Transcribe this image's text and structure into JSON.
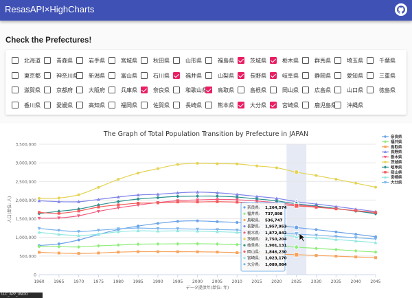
{
  "app": {
    "title": "ResasAPI×HighCharts",
    "github_icon": "github-icon"
  },
  "section": {
    "title": "Check the Prefectures!"
  },
  "colors": {
    "appbar": "#3f51b5",
    "checkbox_checked": "#e91e63"
  },
  "prefecture_rows": [
    [
      {
        "name": "北海道",
        "checked": false
      },
      {
        "name": "青森県",
        "checked": false
      },
      {
        "name": "岩手県",
        "checked": false
      },
      {
        "name": "宮城県",
        "checked": false
      },
      {
        "name": "秋田県",
        "checked": false
      },
      {
        "name": "山形県",
        "checked": false
      },
      {
        "name": "福島県",
        "checked": false
      },
      {
        "name": "茨城県",
        "checked": true
      },
      {
        "name": "栃木県",
        "checked": true
      },
      {
        "name": "群馬県",
        "checked": false
      },
      {
        "name": "埼玉県",
        "checked": false
      },
      {
        "name": "千葉県",
        "checked": false
      }
    ],
    [
      {
        "name": "東京都",
        "checked": false
      },
      {
        "name": "神奈川県",
        "checked": false
      },
      {
        "name": "新潟県",
        "checked": false
      },
      {
        "name": "富山県",
        "checked": false
      },
      {
        "name": "石川県",
        "checked": false
      },
      {
        "name": "福井県",
        "checked": true
      },
      {
        "name": "山梨県",
        "checked": false
      },
      {
        "name": "長野県",
        "checked": true
      },
      {
        "name": "岐阜県",
        "checked": true
      },
      {
        "name": "静岡県",
        "checked": false
      },
      {
        "name": "愛知県",
        "checked": false
      },
      {
        "name": "三重県",
        "checked": false
      }
    ],
    [
      {
        "name": "滋賀県",
        "checked": false
      },
      {
        "name": "京都府",
        "checked": false
      },
      {
        "name": "大阪府",
        "checked": false
      },
      {
        "name": "兵庫県",
        "checked": false
      },
      {
        "name": "奈良県",
        "checked": true
      },
      {
        "name": "和歌山県",
        "checked": false
      },
      {
        "name": "鳥取県",
        "checked": true
      },
      {
        "name": "島根県",
        "checked": false
      },
      {
        "name": "岡山県",
        "checked": false
      },
      {
        "name": "広島県",
        "checked": false
      },
      {
        "name": "山口県",
        "checked": false
      },
      {
        "name": "徳島県",
        "checked": false
      }
    ],
    [
      {
        "name": "香川県",
        "checked": false
      },
      {
        "name": "愛媛県",
        "checked": false
      },
      {
        "name": "高知県",
        "checked": false
      },
      {
        "name": "福岡県",
        "checked": false
      },
      {
        "name": "佐賀県",
        "checked": false
      },
      {
        "name": "長崎県",
        "checked": false
      },
      {
        "name": "熊本県",
        "checked": false
      },
      {
        "name": "大分県",
        "checked": true
      },
      {
        "name": "宮崎県",
        "checked": true
      },
      {
        "name": "鹿児島県",
        "checked": false
      },
      {
        "name": "沖縄県",
        "checked": false
      }
    ]
  ],
  "chart_data": {
    "type": "line",
    "title": "The Graph of Total Population Transition by Prefecture in JAPAN",
    "xlabel": "データ提供年(単位: 年)",
    "ylabel": "人口(単位: 人)",
    "ylim": [
      0,
      3500000
    ],
    "yticks": [
      "0",
      "500,000",
      "1,000,000",
      "1,500,000",
      "2,000,000",
      "2,500,000",
      "3,000,000",
      "3,500,000"
    ],
    "x": [
      1960,
      1965,
      1970,
      1975,
      1980,
      1985,
      1990,
      1995,
      2000,
      2005,
      2010,
      2015,
      2020,
      2025,
      2030,
      2035,
      2040,
      2045
    ],
    "highlight_year": 2025,
    "legend_position": "right",
    "grid": true,
    "series": [
      {
        "name": "奈良県",
        "color": "#6aa3e8",
        "values": [
          781058,
          825965,
          930160,
          1077491,
          1209365,
          1304866,
          1375481,
          1430862,
          1442795,
          1421310,
          1400728,
          1364316,
          1324473,
          1264574,
          1208000,
          1147000,
          1083000,
          1018000
        ]
      },
      {
        "name": "福井県",
        "color": "#90ed7d",
        "values": [
          752696,
          750557,
          744230,
          773599,
          794354,
          817633,
          823585,
          826996,
          828944,
          821592,
          806314,
          786740,
          766863,
          737898,
          705000,
          672000,
          638000,
          605000
        ]
      },
      {
        "name": "鳥取県",
        "color": "#f7a35c",
        "values": [
          599135,
          579853,
          568777,
          581311,
          604221,
          616024,
          615722,
          614929,
          613289,
          607012,
          588667,
          573441,
          553407,
          536747,
          516000,
          496000,
          475000,
          455000
        ]
      },
      {
        "name": "長野県",
        "color": "#8085e9",
        "values": [
          1981433,
          1958007,
          1956917,
          2017564,
          2083934,
          2136927,
          2156627,
          2193984,
          2215168,
          2196114,
          2152449,
          2098804,
          2048011,
          1957953,
          1895000,
          1829000,
          1760000,
          1692000
        ]
      },
      {
        "name": "栃木県",
        "color": "#f15c80",
        "values": [
          1513624,
          1521656,
          1580021,
          1698003,
          1792201,
          1866066,
          1935168,
          1984390,
          2004817,
          2016631,
          2007683,
          1974255,
          1933146,
          1872842,
          1825000,
          1770000,
          1709000,
          1643000
        ]
      },
      {
        "name": "茨城県",
        "color": "#e4d354",
        "values": [
          2047024,
          2056154,
          2143551,
          2342198,
          2558007,
          2725005,
          2845382,
          2955530,
          2985676,
          2975167,
          2969770,
          2916976,
          2867009,
          2750204,
          2660000,
          2560000,
          2455000,
          2346000
        ]
      },
      {
        "name": "岐阜県",
        "color": "#2b908f",
        "values": [
          1638399,
          1700365,
          1758954,
          1867978,
          1960107,
          2028536,
          2066569,
          2100315,
          2107700,
          2107226,
          2080773,
          2031903,
          1978742,
          1901131,
          1840000,
          1775000,
          1706000,
          1635000
        ]
      },
      {
        "name": "岡山県",
        "color": "#f45b5b",
        "values": [
          1670454,
          1645135,
          1707026,
          1814305,
          1871023,
          1916906,
          1925877,
          1950750,
          1950828,
          1957264,
          1945276,
          1921525,
          1888432,
          1846230,
          1808000,
          1765000,
          1718000,
          1668000
        ]
      },
      {
        "name": "宮崎県",
        "color": "#91e8e1",
        "values": [
          1134590,
          1080692,
          1051105,
          1085055,
          1151587,
          1175543,
          1168907,
          1175819,
          1170007,
          1153042,
          1135233,
          1104069,
          1069576,
          1023170,
          985000,
          945000,
          903000,
          860000
        ]
      },
      {
        "name": "大分県",
        "color": "#7cb5ec",
        "values": [
          1239655,
          1187480,
          1155566,
          1190314,
          1228913,
          1250214,
          1236942,
          1231306,
          1221140,
          1209571,
          1196529,
          1166338,
          1123852,
          1089084,
          1058000,
          1025000,
          990000,
          955000
        ]
      }
    ],
    "tooltip": [
      {
        "name": "奈良県",
        "value": "1,264,574"
      },
      {
        "name": "福井県",
        "value": "737,898"
      },
      {
        "name": "鳥取県",
        "value": "536,747"
      },
      {
        "name": "長野県",
        "value": "1,957,953"
      },
      {
        "name": "栃木県",
        "value": "1,872,842"
      },
      {
        "name": "茨城県",
        "value": "2,750,204"
      },
      {
        "name": "岐阜県",
        "value": "1,901,131"
      },
      {
        "name": "岡山県",
        "value": "1,846,230"
      },
      {
        "name": "宮崎県",
        "value": "1,023,170"
      },
      {
        "name": "大分県",
        "value": "1,089,084"
      }
    ]
  },
  "taskbar": {
    "label": "LLC_APP_UNDO"
  }
}
